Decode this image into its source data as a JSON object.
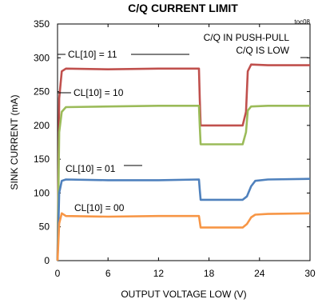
{
  "chart_data": {
    "type": "line",
    "title": "C/Q CURRENT LIMIT",
    "ref": "toc08",
    "xlabel": "OUTPUT VOLTAGE LOW (V)",
    "ylabel": "SINK CURRENT (mA)",
    "xlim": [
      0,
      30
    ],
    "ylim": [
      0,
      350
    ],
    "xticks": [
      0,
      6,
      12,
      18,
      24,
      30
    ],
    "yticks": [
      0,
      50,
      100,
      150,
      200,
      250,
      300,
      350
    ],
    "grid": false,
    "legend": "none",
    "annotations": [
      "C/Q IN PUSH-PULL",
      "C/Q IS LOW"
    ],
    "series": [
      {
        "name": "CL[10] = 11",
        "color": "#c0504d",
        "x": [
          0,
          0.2,
          0.5,
          1,
          6,
          12,
          16.8,
          16.9,
          17,
          22,
          22.4,
          22.6,
          23,
          25,
          30
        ],
        "y": [
          0,
          240,
          280,
          284,
          283,
          284,
          284,
          240,
          200,
          200,
          220,
          280,
          290,
          289,
          289
        ]
      },
      {
        "name": "CL[10] = 10",
        "color": "#9bbb59",
        "x": [
          0,
          0.2,
          0.5,
          1,
          6,
          12,
          16.8,
          16.9,
          17,
          22,
          22.4,
          22.6,
          23,
          25,
          30
        ],
        "y": [
          0,
          190,
          220,
          227,
          228,
          229,
          229,
          200,
          172,
          172,
          190,
          222,
          228,
          229,
          229
        ]
      },
      {
        "name": "CL[10] = 01",
        "color": "#4f81bd",
        "x": [
          0,
          0.2,
          0.5,
          1,
          6,
          12,
          16.8,
          16.9,
          17,
          22,
          22.5,
          23,
          23.5,
          25,
          30
        ],
        "y": [
          0,
          100,
          118,
          120,
          119,
          119,
          120,
          105,
          90,
          90,
          95,
          110,
          118,
          120,
          121
        ]
      },
      {
        "name": "CL[10] = 00",
        "color": "#f79646",
        "x": [
          0,
          0.2,
          0.5,
          1,
          6,
          12,
          16.8,
          16.9,
          17,
          22,
          22.5,
          23,
          23.5,
          25,
          30
        ],
        "y": [
          0,
          55,
          70,
          66,
          65,
          66,
          66,
          58,
          49,
          49,
          54,
          64,
          68,
          69,
          70
        ]
      }
    ]
  }
}
